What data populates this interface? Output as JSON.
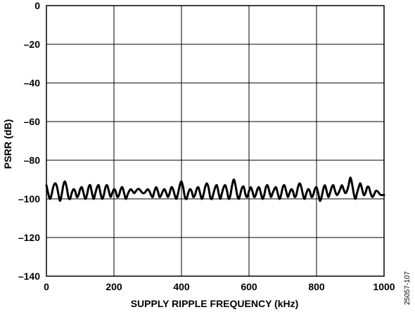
{
  "chart_data": {
    "type": "line",
    "title": "",
    "xlabel": "SUPPLY RIPPLE FREQUENCY (kHz)",
    "ylabel": "PSRR (dB)",
    "xlim": [
      0,
      1000
    ],
    "ylim": [
      -140,
      0
    ],
    "x_ticks": [
      0,
      200,
      400,
      600,
      800,
      1000
    ],
    "y_ticks": [
      0,
      -20,
      -40,
      -60,
      -80,
      -100,
      -120,
      -140
    ],
    "x_tick_labels": [
      "0",
      "200",
      "400",
      "600",
      "800",
      "1000"
    ],
    "y_tick_labels": [
      "0",
      "–20",
      "–40",
      "–60",
      "–80",
      "–100",
      "–120",
      "–140"
    ],
    "grid": true,
    "line_color": "#000000",
    "series": [
      {
        "x": [
          0,
          5,
          10,
          15,
          20,
          25,
          30,
          35,
          40,
          45,
          50,
          55,
          60,
          65,
          70,
          75,
          80,
          85,
          90,
          95,
          100,
          105,
          110,
          115,
          120,
          125,
          130,
          135,
          140,
          145,
          150,
          155,
          160,
          165,
          170,
          175,
          180,
          185,
          190,
          195,
          200,
          205,
          210,
          215,
          220,
          225,
          230,
          235,
          240,
          245,
          250,
          255,
          260,
          265,
          270,
          275,
          280,
          285,
          290,
          295,
          300,
          305,
          310,
          315,
          320,
          325,
          330,
          335,
          340,
          345,
          350,
          355,
          360,
          365,
          370,
          375,
          380,
          385,
          390,
          395,
          400,
          405,
          410,
          415,
          420,
          425,
          430,
          435,
          440,
          445,
          450,
          455,
          460,
          465,
          470,
          475,
          480,
          485,
          490,
          495,
          500,
          505,
          510,
          515,
          520,
          525,
          530,
          535,
          540,
          545,
          550,
          555,
          560,
          565,
          570,
          575,
          580,
          585,
          590,
          595,
          600,
          605,
          610,
          615,
          620,
          625,
          630,
          635,
          640,
          645,
          650,
          655,
          660,
          665,
          670,
          675,
          680,
          685,
          690,
          695,
          700,
          705,
          710,
          715,
          720,
          725,
          730,
          735,
          740,
          745,
          750,
          755,
          760,
          765,
          770,
          775,
          780,
          785,
          790,
          795,
          800,
          805,
          810,
          815,
          820,
          825,
          830,
          835,
          840,
          845,
          850,
          855,
          860,
          865,
          870,
          875,
          880,
          885,
          890,
          895,
          900,
          905,
          910,
          915,
          920,
          925,
          930,
          935,
          940,
          945,
          950,
          955,
          960,
          965,
          970,
          975,
          980,
          985,
          990,
          995,
          1000
        ],
        "y": [
          -93,
          -97,
          -100,
          -98,
          -94,
          -92,
          -93,
          -97,
          -101,
          -98,
          -93,
          -91,
          -94,
          -99,
          -100,
          -97,
          -95,
          -96,
          -99,
          -98,
          -95,
          -94,
          -97,
          -100,
          -98,
          -94,
          -93,
          -97,
          -100,
          -97,
          -94,
          -93,
          -97,
          -100,
          -98,
          -94,
          -93,
          -96,
          -99,
          -97,
          -95,
          -96,
          -99,
          -98,
          -95,
          -94,
          -97,
          -100,
          -98,
          -96,
          -95,
          -96,
          -97,
          -96,
          -95,
          -95,
          -96,
          -97,
          -97,
          -96,
          -95,
          -96,
          -98,
          -99,
          -96,
          -94,
          -96,
          -99,
          -98,
          -96,
          -95,
          -97,
          -99,
          -97,
          -94,
          -95,
          -98,
          -100,
          -97,
          -93,
          -91,
          -94,
          -99,
          -100,
          -97,
          -95,
          -96,
          -99,
          -98,
          -95,
          -94,
          -97,
          -100,
          -98,
          -94,
          -92,
          -94,
          -99,
          -100,
          -97,
          -94,
          -93,
          -97,
          -100,
          -97,
          -94,
          -93,
          -96,
          -100,
          -98,
          -93,
          -90,
          -93,
          -98,
          -100,
          -97,
          -94,
          -94,
          -98,
          -99,
          -96,
          -94,
          -96,
          -99,
          -98,
          -95,
          -94,
          -97,
          -100,
          -98,
          -94,
          -93,
          -96,
          -99,
          -97,
          -95,
          -94,
          -97,
          -100,
          -98,
          -94,
          -93,
          -96,
          -99,
          -97,
          -95,
          -96,
          -99,
          -98,
          -94,
          -92,
          -94,
          -98,
          -100,
          -97,
          -95,
          -96,
          -99,
          -98,
          -95,
          -94,
          -97,
          -101,
          -99,
          -95,
          -93,
          -96,
          -99,
          -97,
          -94,
          -93,
          -96,
          -98,
          -97,
          -95,
          -93,
          -95,
          -97,
          -96,
          -93,
          -89,
          -92,
          -97,
          -100,
          -97,
          -94,
          -92,
          -95,
          -98,
          -97,
          -94,
          -94,
          -97,
          -99,
          -98,
          -96,
          -96,
          -97,
          -98,
          -98,
          -98
        ]
      }
    ]
  },
  "figure_id": "25057-107"
}
